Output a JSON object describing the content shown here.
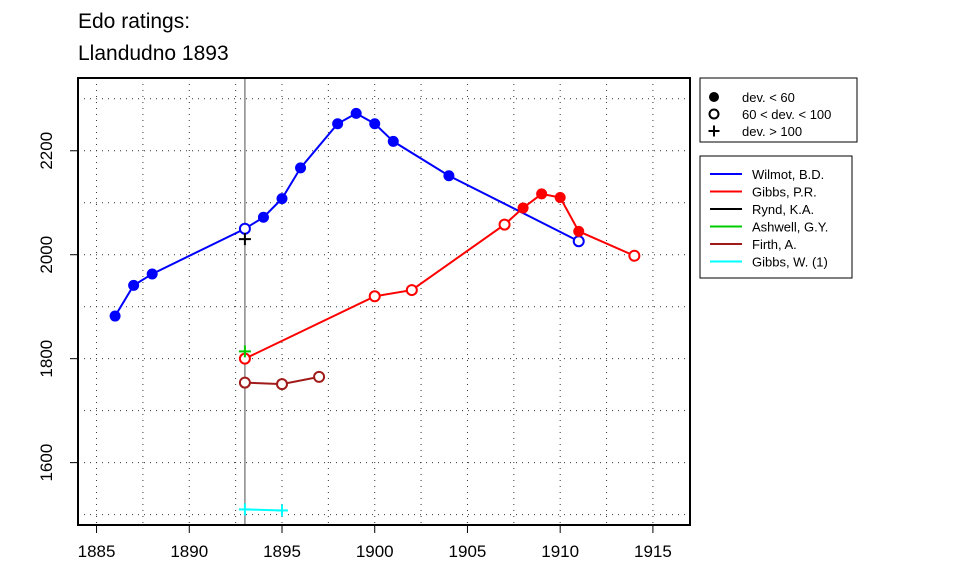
{
  "chart_data": {
    "type": "line",
    "title": [
      "Edo ratings:",
      "Llandudno 1893"
    ],
    "xlabel": "",
    "ylabel": "",
    "xlim": [
      1884,
      1917
    ],
    "ylim": [
      1480,
      2340
    ],
    "x_ticks": [
      1885,
      1890,
      1895,
      1900,
      1905,
      1910,
      1915
    ],
    "y_ticks": [
      1600,
      1800,
      2000,
      2200
    ],
    "grid": "dotted",
    "event_line_x": 1893,
    "marker_legend": [
      {
        "marker": "filled",
        "label": "dev. < 60"
      },
      {
        "marker": "open",
        "label": "60 < dev. < 100"
      },
      {
        "marker": "plus",
        "label": "dev. > 100"
      }
    ],
    "series": [
      {
        "name": "Wilmot, B.D.",
        "color": "#0000ff",
        "points": [
          {
            "x": 1886,
            "y": 1882,
            "m": "filled"
          },
          {
            "x": 1887,
            "y": 1941,
            "m": "filled"
          },
          {
            "x": 1888,
            "y": 1963,
            "m": "filled"
          },
          {
            "x": 1893,
            "y": 2050,
            "m": "open"
          },
          {
            "x": 1894,
            "y": 2072,
            "m": "filled"
          },
          {
            "x": 1895,
            "y": 2108,
            "m": "filled"
          },
          {
            "x": 1896,
            "y": 2167,
            "m": "filled"
          },
          {
            "x": 1898,
            "y": 2252,
            "m": "filled"
          },
          {
            "x": 1899,
            "y": 2272,
            "m": "filled"
          },
          {
            "x": 1900,
            "y": 2252,
            "m": "filled"
          },
          {
            "x": 1901,
            "y": 2218,
            "m": "filled"
          },
          {
            "x": 1904,
            "y": 2152,
            "m": "filled"
          },
          {
            "x": 1911,
            "y": 2026,
            "m": "open"
          }
        ]
      },
      {
        "name": "Gibbs, P.R.",
        "color": "#ff0000",
        "points": [
          {
            "x": 1893,
            "y": 1800,
            "m": "open"
          },
          {
            "x": 1900,
            "y": 1920,
            "m": "open"
          },
          {
            "x": 1902,
            "y": 1932,
            "m": "open"
          },
          {
            "x": 1907,
            "y": 2058,
            "m": "open"
          },
          {
            "x": 1908,
            "y": 2090,
            "m": "filled"
          },
          {
            "x": 1909,
            "y": 2117,
            "m": "filled"
          },
          {
            "x": 1910,
            "y": 2110,
            "m": "filled"
          },
          {
            "x": 1911,
            "y": 2045,
            "m": "filled"
          },
          {
            "x": 1914,
            "y": 1998,
            "m": "open"
          }
        ]
      },
      {
        "name": "Rynd, K.A.",
        "color": "#000000",
        "points": [
          {
            "x": 1893,
            "y": 2030,
            "m": "plus"
          }
        ]
      },
      {
        "name": "Ashwell, G.Y.",
        "color": "#00cc00",
        "points": [
          {
            "x": 1893,
            "y": 1814,
            "m": "plus"
          }
        ]
      },
      {
        "name": "Firth, A.",
        "color": "#a01a1a",
        "points": [
          {
            "x": 1893,
            "y": 1754,
            "m": "open"
          },
          {
            "x": 1895,
            "y": 1751,
            "m": "open"
          },
          {
            "x": 1897,
            "y": 1765,
            "m": "open"
          }
        ]
      },
      {
        "name": "Gibbs, W. (1)",
        "color": "#00ffff",
        "points": [
          {
            "x": 1893,
            "y": 1510,
            "m": "plus"
          },
          {
            "x": 1895,
            "y": 1508,
            "m": "plus"
          }
        ]
      }
    ]
  }
}
